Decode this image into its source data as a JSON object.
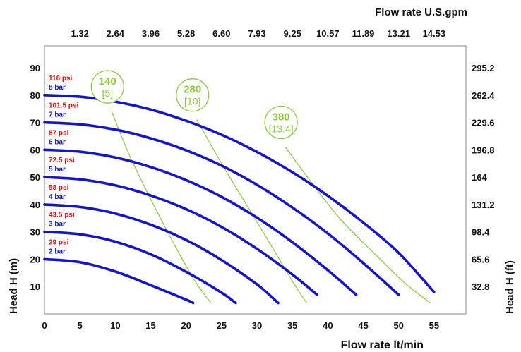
{
  "chart_data": {
    "type": "line",
    "title_top": "Flow rate U.S.gpm",
    "xlabel": "Flow rate lt/min",
    "ylabel_left": "Head H (m)",
    "ylabel_right": "Head H (ft)",
    "xlim": [
      0,
      59.5
    ],
    "ylim": [
      0,
      98
    ],
    "x_ticks": [
      "0",
      "5",
      "10",
      "15",
      "20",
      "25",
      "30",
      "35",
      "40",
      "45",
      "50",
      "55"
    ],
    "y_ticks_left": [
      "10",
      "20",
      "30",
      "40",
      "50",
      "60",
      "70",
      "80",
      "90"
    ],
    "y_ticks_right": [
      "32.8",
      "65.6",
      "98.4",
      "131.2",
      "164",
      "196.8",
      "229.6",
      "262.4",
      "295.2"
    ],
    "x_ticks_top": [
      "1.32",
      "2.64",
      "3.96",
      "5.28",
      "6.60",
      "7.93",
      "9.25",
      "10.57",
      "11.89",
      "13.21",
      "14.53"
    ],
    "grid": false,
    "colors": {
      "curve": "#1414cc",
      "psi_label": "#e01010",
      "bar_label": "#1414cc",
      "efficiency": "#8cc63f",
      "plot_border": "#888888",
      "plot_background": "#ffffff"
    },
    "series": [
      {
        "name": "2 bar",
        "psi": "29 psi",
        "x": [
          0,
          5,
          10,
          15,
          20,
          21
        ],
        "y": [
          20,
          18.9,
          15.5,
          10.5,
          5.2,
          4
        ]
      },
      {
        "name": "3 bar",
        "psi": "43.5 psi",
        "x": [
          0,
          5,
          10,
          15,
          20,
          25,
          27
        ],
        "y": [
          30,
          29.1,
          26.4,
          21.8,
          15.4,
          7.8,
          4
        ]
      },
      {
        "name": "4 bar",
        "psi": "58 psi",
        "x": [
          0,
          5,
          10,
          15,
          20,
          25,
          30,
          33
        ],
        "y": [
          40,
          39.1,
          36.7,
          32.6,
          27,
          19.7,
          10.8,
          4
        ]
      },
      {
        "name": "5 bar",
        "psi": "72.5 psi",
        "x": [
          0,
          5,
          10,
          15,
          20,
          25,
          30,
          35,
          38.5
        ],
        "y": [
          50,
          49.2,
          47,
          43.3,
          38.3,
          31.8,
          23.8,
          14.4,
          7
        ]
      },
      {
        "name": "6 bar",
        "psi": "87 psi",
        "x": [
          0,
          5,
          10,
          15,
          20,
          25,
          30,
          35,
          40,
          44
        ],
        "y": [
          60,
          59.3,
          57.2,
          53.7,
          48.9,
          42.8,
          35.2,
          26.2,
          16,
          7
        ]
      },
      {
        "name": "7 bar",
        "psi": "101.5 psi",
        "x": [
          0,
          5,
          10,
          15,
          20,
          25,
          30,
          35,
          40,
          45,
          50
        ],
        "y": [
          70,
          69.3,
          67.4,
          64.2,
          59.8,
          54.2,
          47.2,
          38.9,
          29.4,
          18.6,
          7
        ]
      },
      {
        "name": "8 bar",
        "psi": "116 psi",
        "x": [
          0,
          5,
          10,
          15,
          20,
          25,
          30,
          35,
          40,
          45,
          50,
          55
        ],
        "y": [
          80,
          79.4,
          77.6,
          74.7,
          70.6,
          65.5,
          59.2,
          51.8,
          43.2,
          33.4,
          22.3,
          8
        ]
      }
    ],
    "efficiency_lines": [
      {
        "label": "140",
        "sub": "[5]",
        "x": [
          9.5,
          12,
          15,
          18,
          21,
          23.5
        ],
        "y": [
          74,
          58,
          42,
          27,
          13,
          4
        ]
      },
      {
        "label": "280",
        "sub": "[10]",
        "x": [
          21.5,
          25,
          28.5,
          32,
          35,
          37
        ],
        "y": [
          71,
          55,
          40,
          25,
          12,
          4
        ]
      },
      {
        "label": "380",
        "sub": "[13.4]",
        "x": [
          34,
          38,
          42,
          47,
          51,
          54.5
        ],
        "y": [
          61,
          47,
          34,
          21,
          11,
          4
        ]
      }
    ]
  }
}
